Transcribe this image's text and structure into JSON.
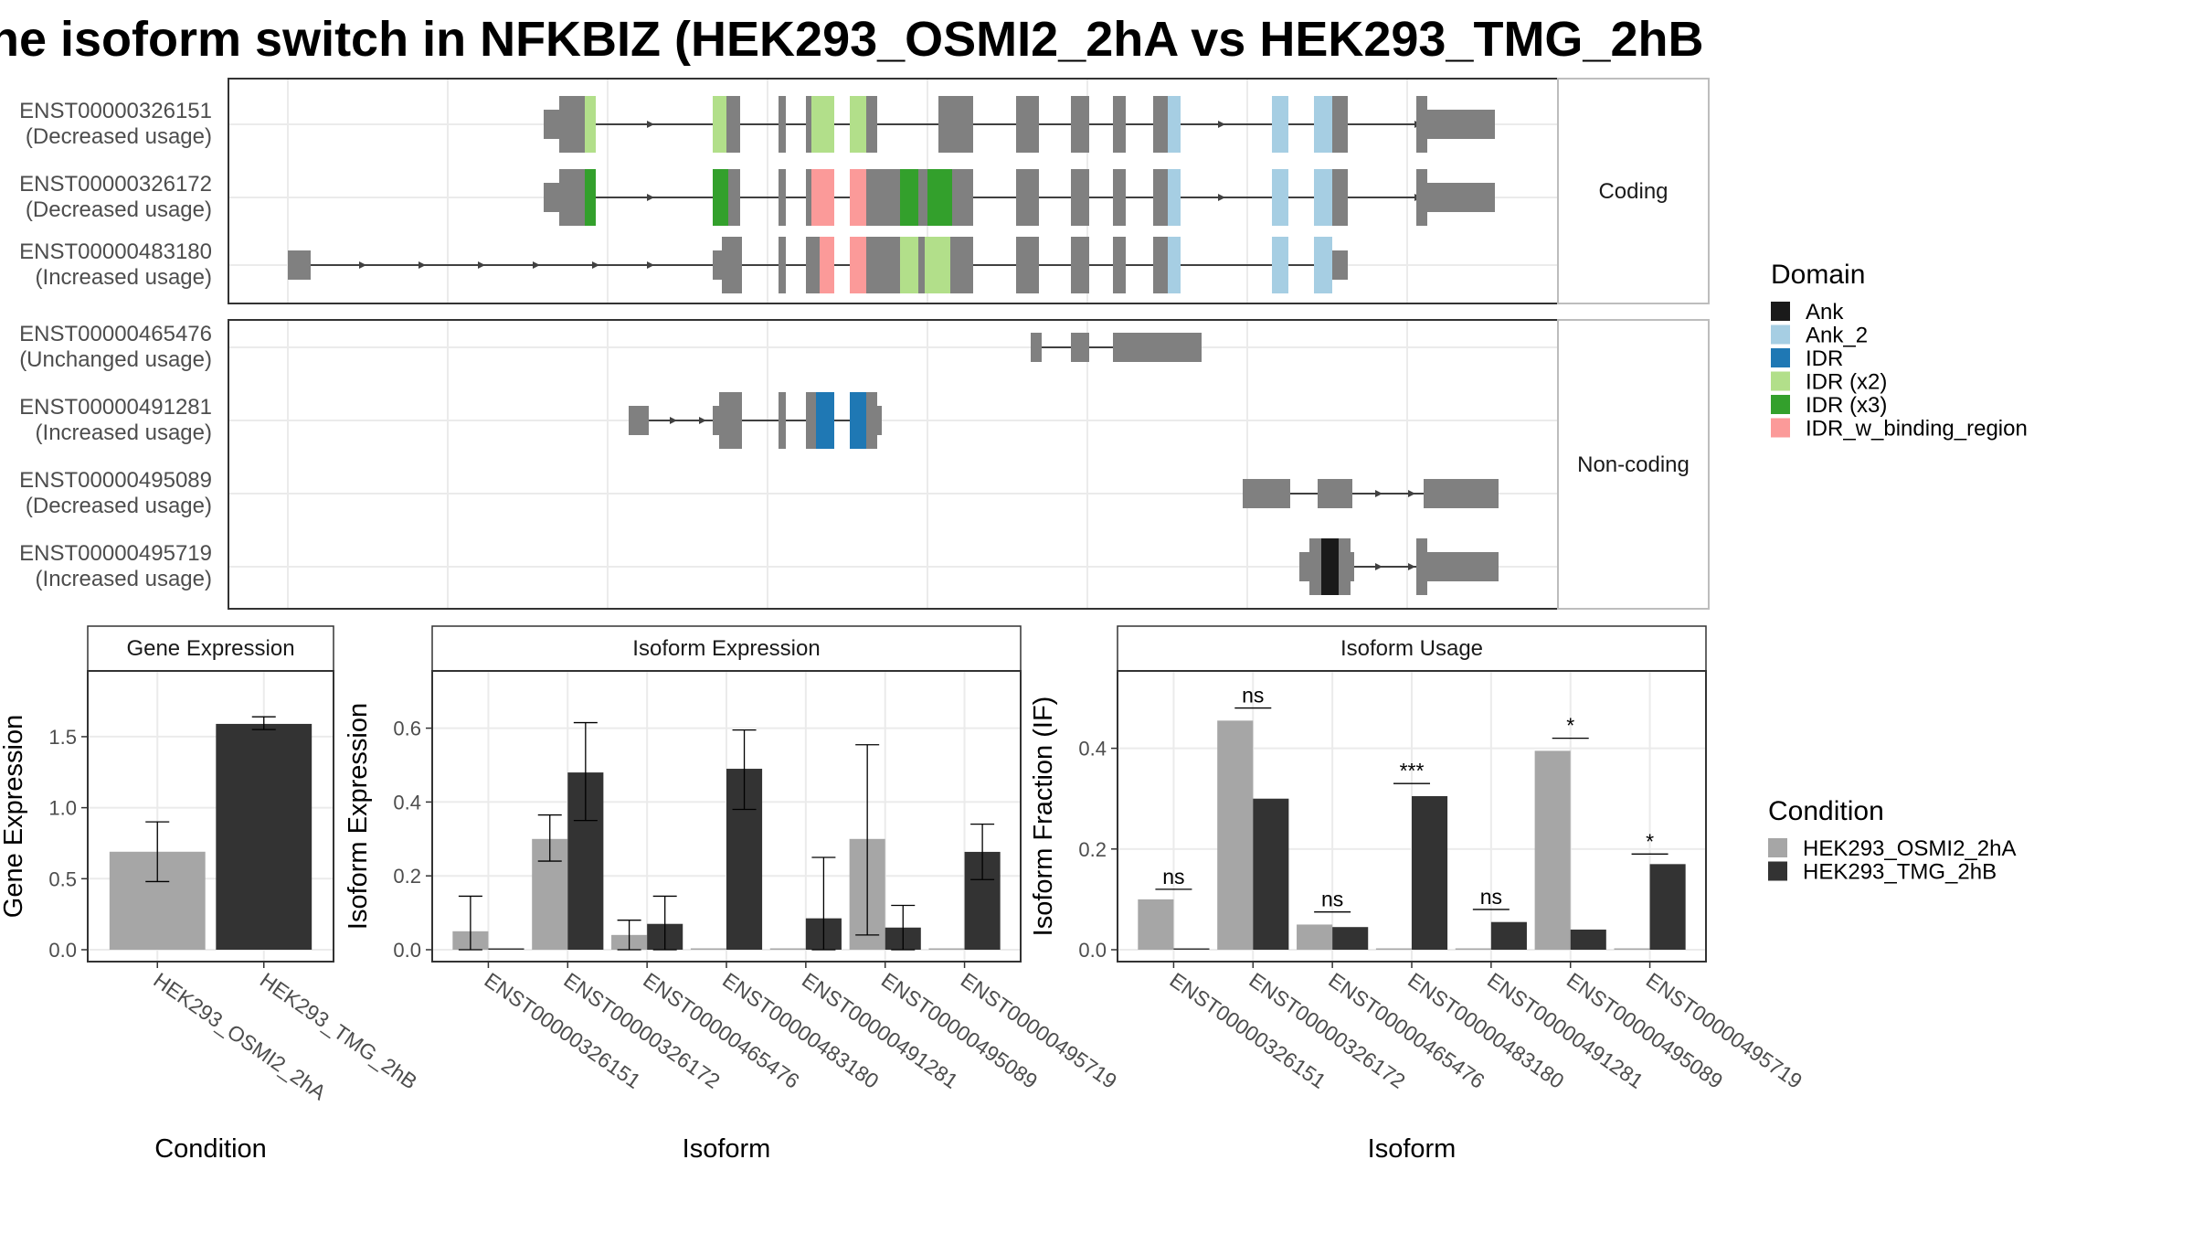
{
  "title": "he isoform switch in NFKBIZ (HEK293_OSMI2_2hA vs HEK293_TMG_2hB",
  "structure": {
    "facets": [
      "Coding",
      "Non-coding"
    ],
    "transcripts": [
      {
        "id": "ENST00000326151",
        "usage": "(Decreased usage)",
        "facet": "Coding",
        "features": [
          {
            "s": 595,
            "e": 612,
            "h": "small",
            "c": "grey"
          },
          {
            "s": 612,
            "e": 640,
            "h": "big",
            "c": "grey"
          },
          {
            "s": 640,
            "e": 652,
            "h": "big",
            "c": "IDR (x2)"
          },
          {
            "s": 780,
            "e": 795,
            "h": "big",
            "c": "IDR (x2)"
          },
          {
            "s": 795,
            "e": 810,
            "h": "big",
            "c": "grey"
          },
          {
            "s": 852,
            "e": 860,
            "h": "big",
            "c": "grey"
          },
          {
            "s": 882,
            "e": 888,
            "h": "big",
            "c": "grey"
          },
          {
            "s": 888,
            "e": 913,
            "h": "big",
            "c": "IDR (x2)"
          },
          {
            "s": 930,
            "e": 948,
            "h": "big",
            "c": "IDR (x2)"
          },
          {
            "s": 948,
            "e": 960,
            "h": "big",
            "c": "grey"
          },
          {
            "s": 1027,
            "e": 1065,
            "h": "big",
            "c": "grey"
          },
          {
            "s": 1112,
            "e": 1137,
            "h": "big",
            "c": "grey"
          },
          {
            "s": 1172,
            "e": 1192,
            "h": "big",
            "c": "grey"
          },
          {
            "s": 1218,
            "e": 1232,
            "h": "big",
            "c": "grey"
          },
          {
            "s": 1262,
            "e": 1278,
            "h": "big",
            "c": "grey"
          },
          {
            "s": 1278,
            "e": 1292,
            "h": "big",
            "c": "Ank_2"
          },
          {
            "s": 1392,
            "e": 1410,
            "h": "big",
            "c": "Ank_2"
          },
          {
            "s": 1438,
            "e": 1458,
            "h": "big",
            "c": "Ank_2"
          },
          {
            "s": 1458,
            "e": 1475,
            "h": "big",
            "c": "grey"
          },
          {
            "s": 1550,
            "e": 1562,
            "h": "big",
            "c": "grey"
          },
          {
            "s": 1562,
            "e": 1636,
            "h": "small",
            "c": "grey"
          }
        ],
        "arrows": [
          715,
          1340,
          1555
        ]
      },
      {
        "id": "ENST00000326172",
        "usage": "(Decreased usage)",
        "facet": "Coding",
        "features": [
          {
            "s": 595,
            "e": 612,
            "h": "small",
            "c": "grey"
          },
          {
            "s": 612,
            "e": 640,
            "h": "big",
            "c": "grey"
          },
          {
            "s": 640,
            "e": 652,
            "h": "big",
            "c": "IDR (x3)"
          },
          {
            "s": 780,
            "e": 797,
            "h": "big",
            "c": "IDR (x3)"
          },
          {
            "s": 797,
            "e": 810,
            "h": "big",
            "c": "grey"
          },
          {
            "s": 852,
            "e": 860,
            "h": "big",
            "c": "grey"
          },
          {
            "s": 882,
            "e": 888,
            "h": "big",
            "c": "grey"
          },
          {
            "s": 888,
            "e": 913,
            "h": "big",
            "c": "IDR_w_binding_region"
          },
          {
            "s": 930,
            "e": 948,
            "h": "big",
            "c": "IDR_w_binding_region"
          },
          {
            "s": 948,
            "e": 985,
            "h": "big",
            "c": "grey"
          },
          {
            "s": 985,
            "e": 1005,
            "h": "big",
            "c": "IDR (x3)"
          },
          {
            "s": 1005,
            "e": 1015,
            "h": "big",
            "c": "grey"
          },
          {
            "s": 1015,
            "e": 1042,
            "h": "big",
            "c": "IDR (x3)"
          },
          {
            "s": 1042,
            "e": 1065,
            "h": "big",
            "c": "grey"
          },
          {
            "s": 1112,
            "e": 1137,
            "h": "big",
            "c": "grey"
          },
          {
            "s": 1172,
            "e": 1192,
            "h": "big",
            "c": "grey"
          },
          {
            "s": 1218,
            "e": 1232,
            "h": "big",
            "c": "grey"
          },
          {
            "s": 1262,
            "e": 1278,
            "h": "big",
            "c": "grey"
          },
          {
            "s": 1278,
            "e": 1292,
            "h": "big",
            "c": "Ank_2"
          },
          {
            "s": 1392,
            "e": 1410,
            "h": "big",
            "c": "Ank_2"
          },
          {
            "s": 1438,
            "e": 1458,
            "h": "big",
            "c": "Ank_2"
          },
          {
            "s": 1458,
            "e": 1475,
            "h": "big",
            "c": "grey"
          },
          {
            "s": 1550,
            "e": 1562,
            "h": "big",
            "c": "grey"
          },
          {
            "s": 1562,
            "e": 1636,
            "h": "small",
            "c": "grey"
          }
        ],
        "arrows": [
          715,
          1340,
          1555
        ]
      },
      {
        "id": "ENST00000483180",
        "usage": "(Increased usage)",
        "facet": "Coding",
        "features": [
          {
            "s": 315,
            "e": 340,
            "h": "small",
            "c": "grey"
          },
          {
            "s": 780,
            "e": 790,
            "h": "small",
            "c": "grey"
          },
          {
            "s": 790,
            "e": 812,
            "h": "big",
            "c": "grey"
          },
          {
            "s": 852,
            "e": 860,
            "h": "big",
            "c": "grey"
          },
          {
            "s": 882,
            "e": 897,
            "h": "big",
            "c": "grey"
          },
          {
            "s": 897,
            "e": 913,
            "h": "big",
            "c": "IDR_w_binding_region"
          },
          {
            "s": 930,
            "e": 948,
            "h": "big",
            "c": "IDR_w_binding_region"
          },
          {
            "s": 948,
            "e": 985,
            "h": "big",
            "c": "grey"
          },
          {
            "s": 985,
            "e": 1005,
            "h": "big",
            "c": "IDR (x2)"
          },
          {
            "s": 1005,
            "e": 1012,
            "h": "big",
            "c": "grey"
          },
          {
            "s": 1012,
            "e": 1040,
            "h": "big",
            "c": "IDR (x2)"
          },
          {
            "s": 1040,
            "e": 1065,
            "h": "big",
            "c": "grey"
          },
          {
            "s": 1112,
            "e": 1137,
            "h": "big",
            "c": "grey"
          },
          {
            "s": 1172,
            "e": 1192,
            "h": "big",
            "c": "grey"
          },
          {
            "s": 1218,
            "e": 1232,
            "h": "big",
            "c": "grey"
          },
          {
            "s": 1262,
            "e": 1278,
            "h": "big",
            "c": "grey"
          },
          {
            "s": 1278,
            "e": 1292,
            "h": "big",
            "c": "Ank_2"
          },
          {
            "s": 1392,
            "e": 1410,
            "h": "big",
            "c": "Ank_2"
          },
          {
            "s": 1438,
            "e": 1458,
            "h": "big",
            "c": "Ank_2"
          },
          {
            "s": 1458,
            "e": 1475,
            "h": "small",
            "c": "grey"
          }
        ],
        "arrows": [
          400,
          465,
          530,
          590,
          655,
          715
        ]
      },
      {
        "id": "ENST00000465476",
        "usage": "(Unchanged usage)",
        "facet": "Non-coding",
        "features": [
          {
            "s": 1128,
            "e": 1140,
            "h": "small",
            "c": "grey"
          },
          {
            "s": 1172,
            "e": 1192,
            "h": "small",
            "c": "grey"
          },
          {
            "s": 1218,
            "e": 1315,
            "h": "small",
            "c": "grey"
          }
        ],
        "arrows": []
      },
      {
        "id": "ENST00000491281",
        "usage": "(Increased usage)",
        "facet": "Non-coding",
        "features": [
          {
            "s": 688,
            "e": 710,
            "h": "small",
            "c": "grey"
          },
          {
            "s": 780,
            "e": 787,
            "h": "small",
            "c": "grey"
          },
          {
            "s": 787,
            "e": 812,
            "h": "big",
            "c": "grey"
          },
          {
            "s": 852,
            "e": 860,
            "h": "big",
            "c": "grey"
          },
          {
            "s": 882,
            "e": 893,
            "h": "big",
            "c": "grey"
          },
          {
            "s": 893,
            "e": 913,
            "h": "big",
            "c": "IDR"
          },
          {
            "s": 930,
            "e": 948,
            "h": "big",
            "c": "IDR"
          },
          {
            "s": 948,
            "e": 960,
            "h": "big",
            "c": "grey"
          },
          {
            "s": 960,
            "e": 965,
            "h": "small",
            "c": "grey"
          }
        ],
        "arrows": [
          740,
          772
        ]
      },
      {
        "id": "ENST00000495089",
        "usage": "(Decreased usage)",
        "facet": "Non-coding",
        "features": [
          {
            "s": 1360,
            "e": 1412,
            "h": "small",
            "c": "grey"
          },
          {
            "s": 1442,
            "e": 1480,
            "h": "small",
            "c": "grey"
          },
          {
            "s": 1558,
            "e": 1640,
            "h": "small",
            "c": "grey"
          }
        ],
        "arrows": [
          1512,
          1548
        ]
      },
      {
        "id": "ENST00000495719",
        "usage": "(Increased usage)",
        "facet": "Non-coding",
        "features": [
          {
            "s": 1422,
            "e": 1433,
            "h": "small",
            "c": "grey"
          },
          {
            "s": 1433,
            "e": 1446,
            "h": "big",
            "c": "grey"
          },
          {
            "s": 1446,
            "e": 1465,
            "h": "big",
            "c": "Ank"
          },
          {
            "s": 1465,
            "e": 1478,
            "h": "big",
            "c": "grey"
          },
          {
            "s": 1478,
            "e": 1482,
            "h": "small",
            "c": "grey"
          },
          {
            "s": 1550,
            "e": 1562,
            "h": "big",
            "c": "grey"
          },
          {
            "s": 1562,
            "e": 1640,
            "h": "small",
            "c": "grey"
          }
        ],
        "arrows": [
          1512,
          1548
        ]
      }
    ]
  },
  "legend_domain": {
    "title": "Domain",
    "items": [
      {
        "label": "Ank",
        "color": "#1a1a1a"
      },
      {
        "label": "Ank_2",
        "color": "#a6cee3"
      },
      {
        "label": "IDR",
        "color": "#1f78b4"
      },
      {
        "label": "IDR (x2)",
        "color": "#b2df8a"
      },
      {
        "label": "IDR (x3)",
        "color": "#33a02c"
      },
      {
        "label": "IDR_w_binding_region",
        "color": "#fb9a99"
      }
    ]
  },
  "legend_condition": {
    "title": "Condition",
    "items": [
      {
        "label": "HEK293_OSMI2_2hA",
        "color": "#a6a6a6"
      },
      {
        "label": "HEK293_TMG_2hB",
        "color": "#333333"
      }
    ]
  },
  "colors": {
    "exon_grey": "#808080",
    "intron": "#404040",
    "grid": "#ebebeb",
    "panel_border": "#333333",
    "strip_border": "#bdbdbd"
  },
  "chart_data": [
    {
      "type": "bar",
      "title": "Gene Expression",
      "xlabel": "Condition",
      "ylabel": "Gene Expression",
      "ylim": [
        0,
        1.95
      ],
      "yticks": [
        "0.0",
        "0.5",
        "1.0",
        "1.5"
      ],
      "categories": [
        "HEK293_OSMI2_2hA",
        "HEK293_TMG_2hB"
      ],
      "values": [
        0.69,
        1.59
      ],
      "errors": [
        [
          0.48,
          0.9
        ],
        [
          1.55,
          1.64
        ]
      ]
    },
    {
      "type": "bar",
      "title": "Isoform Expression",
      "xlabel": "Isoform",
      "ylabel": "Isoform Expression",
      "ylim": [
        0,
        0.75
      ],
      "yticks": [
        "0.0",
        "0.2",
        "0.4",
        "0.6"
      ],
      "categories": [
        "ENST00000326151",
        "ENST00000326172",
        "ENST00000465476",
        "ENST00000483180",
        "ENST00000491281",
        "ENST00000495089",
        "ENST00000495719"
      ],
      "series": [
        {
          "name": "HEK293_OSMI2_2hA",
          "values": [
            0.05,
            0.3,
            0.04,
            0.0,
            0.0,
            0.3,
            0.0
          ],
          "errors": [
            [
              0.0,
              0.145
            ],
            [
              0.24,
              0.365
            ],
            [
              0.0,
              0.08
            ],
            null,
            null,
            [
              0.04,
              0.555
            ],
            null
          ]
        },
        {
          "name": "HEK293_TMG_2hB",
          "values": [
            0.0,
            0.48,
            0.07,
            0.49,
            0.085,
            0.06,
            0.265
          ],
          "errors": [
            null,
            [
              0.35,
              0.615
            ],
            [
              0.0,
              0.145
            ],
            [
              0.38,
              0.595
            ],
            [
              0.0,
              0.25
            ],
            [
              0.0,
              0.12
            ],
            [
              0.19,
              0.34
            ]
          ]
        }
      ]
    },
    {
      "type": "bar",
      "title": "Isoform Usage",
      "xlabel": "Isoform",
      "ylabel": "Isoform Fraction (IF)",
      "ylim": [
        0,
        0.55
      ],
      "yticks": [
        "0.0",
        "0.2",
        "0.4"
      ],
      "categories": [
        "ENST00000326151",
        "ENST00000326172",
        "ENST00000465476",
        "ENST00000483180",
        "ENST00000491281",
        "ENST00000495089",
        "ENST00000495719"
      ],
      "series": [
        {
          "name": "HEK293_OSMI2_2hA",
          "values": [
            0.1,
            0.455,
            0.05,
            0.0,
            0.0,
            0.395,
            0.0
          ]
        },
        {
          "name": "HEK293_TMG_2hB",
          "values": [
            0.0,
            0.3,
            0.045,
            0.305,
            0.055,
            0.04,
            0.17
          ]
        }
      ],
      "significance": [
        {
          "label": "ns",
          "y": 0.12
        },
        {
          "label": "ns",
          "y": 0.48
        },
        {
          "label": "ns",
          "y": 0.075
        },
        {
          "label": "***",
          "y": 0.33
        },
        {
          "label": "ns",
          "y": 0.08
        },
        {
          "label": "*",
          "y": 0.42
        },
        {
          "label": "*",
          "y": 0.19
        }
      ]
    }
  ]
}
